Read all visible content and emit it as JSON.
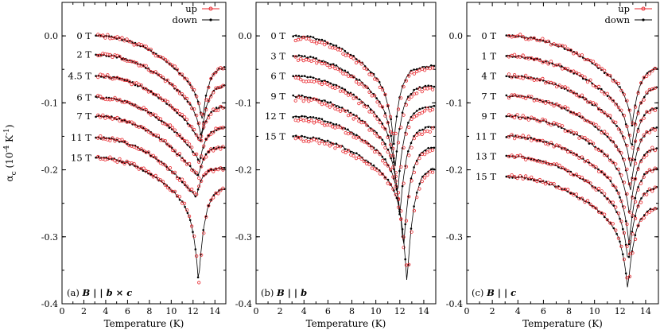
{
  "chart_data": [
    {
      "type": "scatter",
      "panel_label": "(a)",
      "panel_field_text": "B | | b × c",
      "xlabel": "Temperature (K)",
      "ylabel": "αc (10⁻⁴ K⁻¹)",
      "ylabel_main": "α",
      "ylabel_sub": "c",
      "ylabel_rest": " (10",
      "ylabel_sup": "-4",
      "ylabel_unit": " K",
      "ylabel_sup2": "-1",
      "ylabel_close": ")",
      "xlim": [
        0,
        15
      ],
      "ylim": [
        -0.4,
        0.05
      ],
      "x_ticks": [
        "0",
        "2",
        "4",
        "6",
        "8",
        "10",
        "12",
        "14"
      ],
      "y_ticks": [
        "0.0",
        "-0.1",
        "-0.2",
        "-0.3",
        "-0.4"
      ],
      "legend": [
        {
          "label": "up",
          "color": "#e8272d"
        },
        {
          "label": "down",
          "color": "#000000"
        }
      ],
      "curves": [
        {
          "field": "0 T",
          "offset": 0.0,
          "tmin_K": 12.85,
          "dip_y": -0.128
        },
        {
          "field": "2 T",
          "offset": -0.028,
          "tmin_K": 12.75,
          "dip_y": -0.152
        },
        {
          "field": "4.5 T",
          "offset": -0.06,
          "tmin_K": 12.65,
          "dip_y": -0.16
        },
        {
          "field": "6 T",
          "offset": -0.092,
          "tmin_K": 12.6,
          "dip_y": -0.19
        },
        {
          "field": "7 T",
          "offset": -0.12,
          "tmin_K": 12.5,
          "dip_y": -0.21
        },
        {
          "field": "11 T",
          "offset": -0.152,
          "tmin_K": 12.3,
          "dip_y": -0.24
        },
        {
          "field": "15 T",
          "offset": -0.182,
          "tmin_K": 12.5,
          "dip_y": -0.37
        }
      ]
    },
    {
      "type": "scatter",
      "panel_label": "(b)",
      "panel_field_text": "B | | b",
      "xlabel": "Temperature (K)",
      "xlim": [
        0,
        15
      ],
      "ylim": [
        -0.4,
        0.05
      ],
      "x_ticks": [
        "0",
        "2",
        "4",
        "6",
        "8",
        "10",
        "12",
        "14"
      ],
      "y_ticks": [
        "0.0",
        "-0.1",
        "-0.2",
        "-0.3",
        "-0.4"
      ],
      "curves": [
        {
          "field": "0 T",
          "offset": 0.0,
          "tmin_K": 11.5,
          "dip_y": -0.16
        },
        {
          "field": "3 T",
          "offset": -0.03,
          "tmin_K": 11.6,
          "dip_y": -0.2
        },
        {
          "field": "6 T",
          "offset": -0.06,
          "tmin_K": 11.8,
          "dip_y": -0.24
        },
        {
          "field": "9 T",
          "offset": -0.09,
          "tmin_K": 12.0,
          "dip_y": -0.27
        },
        {
          "field": "12 T",
          "offset": -0.12,
          "tmin_K": 12.3,
          "dip_y": -0.32
        },
        {
          "field": "15 T",
          "offset": -0.15,
          "tmin_K": 12.6,
          "dip_y": -0.37
        }
      ]
    },
    {
      "type": "scatter",
      "panel_label": "(c)",
      "panel_field_text": "B | | c",
      "xlabel": "Temperature (K)",
      "xlim": [
        0,
        15
      ],
      "ylim": [
        -0.4,
        0.05
      ],
      "x_ticks": [
        "0",
        "2",
        "4",
        "6",
        "8",
        "10",
        "12",
        "14"
      ],
      "y_ticks": [
        "0.0",
        "-0.1",
        "-0.2",
        "-0.3",
        "-0.4"
      ],
      "legend": [
        {
          "label": "up",
          "color": "#e8272d"
        },
        {
          "label": "down",
          "color": "#000000"
        }
      ],
      "curves": [
        {
          "field": "0 T",
          "offset": 0.0,
          "tmin_K": 12.95,
          "dip_y": -0.135
        },
        {
          "field": "1 T",
          "offset": -0.03,
          "tmin_K": 12.9,
          "dip_y": -0.17
        },
        {
          "field": "4 T",
          "offset": -0.06,
          "tmin_K": 12.85,
          "dip_y": -0.2
        },
        {
          "field": "7 T",
          "offset": -0.09,
          "tmin_K": 12.8,
          "dip_y": -0.235
        },
        {
          "field": "9 T",
          "offset": -0.12,
          "tmin_K": 12.75,
          "dip_y": -0.27
        },
        {
          "field": "11 T",
          "offset": -0.15,
          "tmin_K": 12.7,
          "dip_y": -0.31
        },
        {
          "field": "13 T",
          "offset": -0.18,
          "tmin_K": 12.65,
          "dip_y": -0.34
        },
        {
          "field": "15 T",
          "offset": -0.21,
          "tmin_K": 12.6,
          "dip_y": -0.38
        }
      ]
    }
  ],
  "colors": {
    "up": "#e8272d",
    "down": "#000000"
  }
}
